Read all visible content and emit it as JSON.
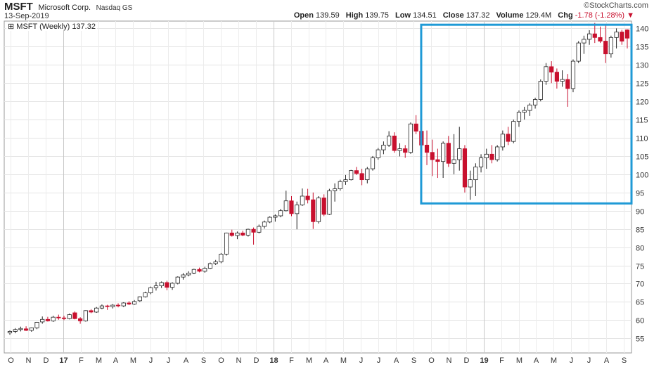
{
  "header": {
    "ticker": "MSFT",
    "company": "Microsoft Corp.",
    "exchange": "Nasdaq GS",
    "date": "13-Sep-2019",
    "brand": "©StockCharts.com",
    "open_label": "Open",
    "open": "139.59",
    "high_label": "High",
    "high": "139.75",
    "low_label": "Low",
    "low": "134.51",
    "close_label": "Close",
    "close": "137.32",
    "volume_label": "Volume",
    "volume": "129.4M",
    "chg_label": "Chg",
    "chg": "-1.78 (-1.28%)",
    "chg_color": "#c8102e"
  },
  "legend": {
    "label": "MSFT (Weekly) 137.32"
  },
  "chart_data": {
    "type": "candlestick",
    "series_name": "MSFT (Weekly)",
    "ylim": [
      51,
      142
    ],
    "yticks": [
      55,
      60,
      65,
      70,
      75,
      80,
      85,
      90,
      95,
      100,
      105,
      110,
      115,
      120,
      125,
      130,
      135,
      140
    ],
    "xticks": [
      "O",
      "N",
      "D",
      "17",
      "F",
      "M",
      "A",
      "M",
      "J",
      "J",
      "A",
      "S",
      "O",
      "N",
      "D",
      "18",
      "F",
      "M",
      "A",
      "M",
      "J",
      "J",
      "A",
      "S",
      "O",
      "N",
      "D",
      "19",
      "F",
      "M",
      "A",
      "M",
      "J",
      "J",
      "A",
      "S"
    ],
    "grid": true,
    "up_color": "#ffffff",
    "down_color": "#c8102e",
    "highlight_box": {
      "color": "#1f9ad6",
      "from": "2018-10",
      "to": "2019-09",
      "ylim": [
        92,
        141
      ]
    },
    "candles": [
      [
        56.5,
        57.2,
        56.0,
        56.9
      ],
      [
        56.9,
        57.8,
        56.4,
        57.4
      ],
      [
        57.4,
        58.2,
        56.9,
        57.7
      ],
      [
        57.6,
        58.3,
        57.0,
        57.2
      ],
      [
        57.2,
        58.0,
        56.8,
        57.9
      ],
      [
        57.9,
        59.5,
        57.5,
        59.4
      ],
      [
        59.5,
        61.0,
        59.0,
        60.2
      ],
      [
        60.2,
        60.9,
        59.6,
        59.8
      ],
      [
        59.8,
        61.2,
        59.5,
        60.8
      ],
      [
        60.8,
        61.5,
        60.1,
        60.6
      ],
      [
        60.6,
        61.2,
        60.0,
        60.4
      ],
      [
        60.4,
        61.8,
        60.2,
        61.5
      ],
      [
        62.0,
        62.4,
        60.2,
        60.4
      ],
      [
        60.4,
        60.8,
        59.0,
        59.8
      ],
      [
        59.8,
        62.7,
        59.6,
        62.6
      ],
      [
        62.6,
        63.0,
        61.9,
        62.2
      ],
      [
        62.2,
        63.6,
        62.0,
        63.3
      ],
      [
        63.3,
        64.3,
        63.0,
        63.9
      ],
      [
        63.9,
        64.2,
        62.8,
        63.7
      ],
      [
        63.7,
        64.4,
        63.2,
        64.1
      ],
      [
        64.1,
        64.6,
        63.5,
        63.9
      ],
      [
        63.9,
        64.9,
        63.6,
        64.7
      ],
      [
        64.7,
        65.2,
        64.1,
        64.4
      ],
      [
        64.4,
        65.5,
        64.2,
        65.1
      ],
      [
        65.3,
        66.5,
        65.0,
        66.4
      ],
      [
        66.4,
        67.8,
        66.2,
        67.5
      ],
      [
        67.5,
        69.2,
        67.1,
        68.9
      ],
      [
        68.9,
        70.5,
        68.1,
        69.4
      ],
      [
        69.4,
        70.6,
        68.8,
        70.3
      ],
      [
        70.3,
        70.8,
        68.2,
        69.0
      ],
      [
        69.0,
        70.4,
        68.3,
        70.1
      ],
      [
        70.1,
        72.0,
        69.8,
        71.8
      ],
      [
        71.8,
        72.9,
        71.1,
        72.4
      ],
      [
        72.4,
        73.4,
        72.0,
        72.9
      ],
      [
        72.9,
        74.1,
        72.6,
        73.9
      ],
      [
        73.9,
        74.4,
        73.1,
        73.4
      ],
      [
        73.4,
        74.6,
        73.0,
        74.2
      ],
      [
        74.2,
        75.8,
        74.0,
        75.5
      ],
      [
        75.5,
        76.5,
        75.1,
        76.0
      ],
      [
        76.0,
        78.4,
        75.6,
        78.1
      ],
      [
        78.1,
        84.0,
        77.7,
        83.9
      ],
      [
        83.9,
        84.8,
        82.9,
        83.2
      ],
      [
        83.2,
        84.3,
        82.2,
        83.9
      ],
      [
        83.9,
        84.5,
        83.0,
        83.3
      ],
      [
        83.3,
        85.1,
        82.9,
        84.9
      ],
      [
        84.9,
        85.4,
        80.7,
        84.1
      ],
      [
        84.1,
        86.2,
        83.8,
        85.7
      ],
      [
        85.7,
        87.3,
        85.1,
        86.9
      ],
      [
        86.9,
        88.5,
        86.6,
        88.2
      ],
      [
        88.2,
        89.0,
        87.0,
        88.6
      ],
      [
        88.6,
        90.5,
        88.2,
        90.0
      ],
      [
        90.0,
        95.5,
        89.8,
        92.7
      ],
      [
        92.7,
        94.0,
        88.5,
        89.2
      ],
      [
        89.2,
        92.5,
        84.9,
        91.6
      ],
      [
        91.6,
        96.1,
        91.3,
        94.0
      ],
      [
        94.0,
        96.0,
        92.0,
        93.0
      ],
      [
        93.0,
        95.0,
        85.0,
        87.0
      ],
      [
        87.0,
        94.0,
        86.5,
        93.5
      ],
      [
        93.5,
        94.5,
        88.5,
        89.0
      ],
      [
        89.0,
        96.0,
        88.8,
        95.5
      ],
      [
        95.5,
        97.5,
        92.5,
        96.0
      ],
      [
        96.0,
        98.5,
        95.5,
        98.0
      ],
      [
        98.0,
        99.8,
        97.1,
        98.5
      ],
      [
        98.5,
        101.2,
        98.3,
        101.0
      ],
      [
        101.0,
        102.0,
        99.8,
        100.2
      ],
      [
        100.2,
        101.5,
        97.0,
        98.5
      ],
      [
        98.5,
        102.0,
        97.5,
        101.5
      ],
      [
        101.5,
        105.0,
        101.0,
        104.5
      ],
      [
        104.5,
        107.2,
        104.0,
        106.7
      ],
      [
        106.7,
        109.0,
        105.5,
        108.0
      ],
      [
        108.0,
        111.8,
        107.5,
        110.5
      ],
      [
        110.5,
        111.5,
        105.9,
        106.5
      ],
      [
        106.5,
        108.5,
        104.9,
        107.0
      ],
      [
        107.0,
        108.0,
        104.5,
        106.0
      ],
      [
        106.0,
        114.2,
        105.6,
        113.8
      ],
      [
        113.8,
        116.2,
        111.0,
        111.8
      ],
      [
        111.8,
        112.5,
        104.0,
        108.0
      ],
      [
        108.0,
        112.0,
        102.5,
        106.0
      ],
      [
        106.0,
        109.5,
        99.5,
        104.0
      ],
      [
        104.0,
        107.0,
        99.0,
        103.5
      ],
      [
        103.5,
        109.0,
        99.0,
        108.5
      ],
      [
        108.5,
        110.5,
        102.0,
        103.0
      ],
      [
        103.0,
        111.0,
        100.0,
        104.0
      ],
      [
        104.0,
        113.0,
        101.0,
        107.0
      ],
      [
        107.0,
        108.0,
        95.0,
        96.5
      ],
      [
        96.5,
        101.0,
        93.0,
        98.5
      ],
      [
        98.5,
        103.0,
        94.0,
        102.0
      ],
      [
        102.0,
        105.5,
        100.5,
        104.5
      ],
      [
        104.5,
        107.0,
        101.5,
        105.5
      ],
      [
        105.5,
        108.0,
        103.0,
        104.0
      ],
      [
        104.0,
        108.0,
        103.5,
        107.5
      ],
      [
        107.5,
        112.0,
        106.5,
        111.0
      ],
      [
        111.0,
        113.0,
        108.0,
        109.0
      ],
      [
        109.0,
        115.0,
        108.5,
        114.5
      ],
      [
        114.5,
        117.5,
        113.0,
        117.0
      ],
      [
        117.0,
        118.5,
        115.0,
        117.5
      ],
      [
        117.5,
        119.5,
        116.0,
        119.0
      ],
      [
        119.0,
        121.0,
        118.0,
        120.5
      ],
      [
        120.5,
        126.0,
        120.0,
        125.5
      ],
      [
        125.5,
        130.5,
        124.5,
        129.5
      ],
      [
        129.5,
        131.0,
        125.0,
        128.0
      ],
      [
        128.0,
        129.0,
        123.5,
        125.5
      ],
      [
        125.5,
        128.5,
        124.0,
        126.0
      ],
      [
        126.0,
        127.5,
        118.5,
        123.5
      ],
      [
        123.5,
        131.5,
        122.5,
        131.0
      ],
      [
        131.0,
        136.5,
        130.5,
        136.0
      ],
      [
        136.0,
        138.0,
        133.0,
        137.0
      ],
      [
        137.0,
        139.5,
        135.5,
        138.5
      ],
      [
        138.5,
        141.5,
        136.0,
        137.5
      ],
      [
        137.5,
        140.5,
        136.0,
        136.5
      ],
      [
        136.5,
        141.0,
        130.5,
        133.0
      ],
      [
        133.0,
        138.0,
        132.0,
        137.5
      ],
      [
        137.5,
        140.0,
        134.5,
        139.0
      ],
      [
        139.0,
        139.6,
        135.5,
        136.5
      ],
      [
        139.59,
        139.75,
        134.51,
        137.32
      ]
    ]
  }
}
